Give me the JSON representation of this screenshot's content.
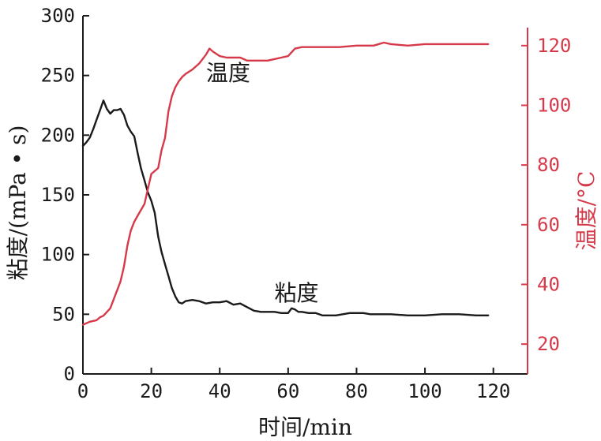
{
  "chart_data": {
    "type": "line",
    "title": "",
    "xlabel": "时间/min",
    "ylabel_left": "粘度/(mPa • s)",
    "ylabel_right": "温度/°C",
    "xlim": [
      0,
      130
    ],
    "ylim_left": [
      0,
      300
    ],
    "ylim_right": [
      10,
      130
    ],
    "x_ticks": [
      0,
      20,
      40,
      60,
      80,
      100,
      120
    ],
    "y_left_ticks": [
      0,
      50,
      100,
      150,
      200,
      250,
      300
    ],
    "y_right_ticks": [
      20,
      40,
      60,
      80,
      100,
      120
    ],
    "grid": false,
    "legend": "none",
    "colors": {
      "viscosity": "#1a1a1a",
      "temperature": "#d63a4a",
      "axis_left": "#1a1a1a",
      "axis_right": "#d63a4a"
    },
    "series": [
      {
        "name": "粘度",
        "axis": "left",
        "color": "#1a1a1a",
        "x": [
          0,
          1,
          2,
          3,
          4,
          5,
          6,
          7,
          8,
          9,
          10,
          11,
          12,
          13,
          14,
          15,
          16,
          17,
          18,
          19,
          20,
          21,
          22,
          23,
          24,
          25,
          26,
          27,
          28,
          29,
          30,
          32,
          34,
          36,
          38,
          40,
          42,
          44,
          46,
          48,
          50,
          52,
          54,
          56,
          58,
          60,
          61,
          62,
          63,
          64,
          66,
          68,
          70,
          72,
          74,
          76,
          78,
          80,
          82,
          84,
          86,
          88,
          90,
          95,
          100,
          105,
          110,
          115,
          118.5
        ],
        "values": [
          191,
          194,
          198,
          205,
          213,
          221,
          229,
          222,
          218,
          221,
          221,
          222,
          217,
          208,
          203,
          199,
          185,
          172,
          162,
          152,
          145,
          135,
          115,
          102,
          92,
          82,
          72,
          65,
          60,
          59,
          61,
          62,
          61,
          59,
          60,
          60,
          61,
          58,
          59,
          56,
          53,
          52,
          52,
          52,
          51,
          51,
          55,
          54,
          52,
          52,
          51,
          51,
          49,
          49,
          49,
          50,
          51,
          51,
          51,
          50,
          50,
          50,
          50,
          49,
          49,
          50,
          50,
          49,
          49
        ]
      },
      {
        "name": "温度",
        "axis": "right",
        "color": "#d63a4a",
        "x": [
          0,
          2,
          4,
          5,
          6,
          8,
          10,
          11,
          12,
          13,
          14,
          15,
          16,
          18,
          19,
          20,
          22,
          23,
          24,
          25,
          26,
          27,
          28,
          29,
          30,
          32,
          34,
          36,
          37,
          38,
          40,
          42,
          44,
          46,
          48,
          50,
          52,
          54,
          56,
          58,
          60,
          62,
          64,
          66,
          70,
          75,
          80,
          85,
          88,
          90,
          95,
          100,
          105,
          110,
          115,
          118.5
        ],
        "values": [
          26.5,
          27.5,
          28,
          29,
          29.5,
          32,
          38,
          41,
          46,
          53,
          58,
          61,
          63,
          67,
          72,
          77,
          79,
          85,
          89,
          98,
          103,
          106,
          108,
          109.5,
          110.5,
          112,
          114,
          117,
          119,
          118,
          116.5,
          116,
          116,
          116,
          115,
          115,
          115,
          115,
          115.5,
          116,
          116.5,
          119,
          119.5,
          119.5,
          119.5,
          119.5,
          120,
          120,
          121,
          120.5,
          120,
          120.5,
          120.5,
          120.5,
          120.5,
          120.5
        ]
      }
    ],
    "annotations": [
      {
        "text": "温度",
        "series": "温度",
        "at_x": 42,
        "at_value": 111
      },
      {
        "text": "粘度",
        "series": "粘度",
        "at_x": 62,
        "at_value": 68
      }
    ]
  }
}
